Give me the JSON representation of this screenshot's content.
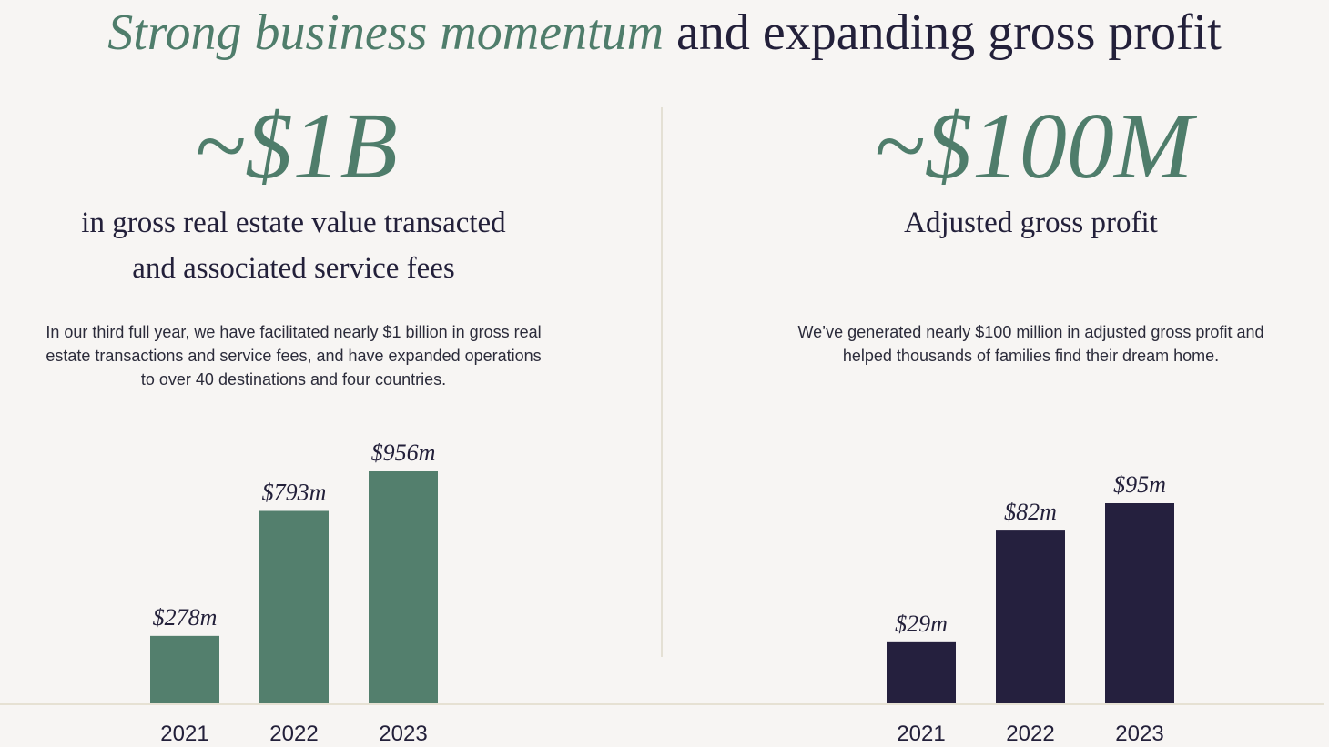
{
  "header": {
    "title_highlight": "Strong business momentum",
    "title_rest": "and expanding gross profit"
  },
  "left": {
    "big_number": "~$1B",
    "subtitle_lines": [
      "in gross real estate value transacted",
      "and associated service fees"
    ],
    "description_lines": [
      "In our third full year, we have facilitated nearly $1 billion in gross real",
      "estate transactions and service fees, and have expanded operations",
      "to over 40 destinations and four countries."
    ]
  },
  "right": {
    "big_number": "~$100M",
    "subtitle_lines": [
      "Adjusted gross profit"
    ],
    "description_lines": [
      "We’ve generated nearly $100 million in adjusted gross profit and",
      "helped thousands of families find their dream home."
    ]
  },
  "colors": {
    "green": "#537f6d",
    "navy": "#25203e",
    "background": "#f7f5f3"
  },
  "chart_data": [
    {
      "type": "bar",
      "categories": [
        "2021",
        "2022",
        "2023"
      ],
      "values": [
        278,
        793,
        956
      ],
      "data_labels": [
        "$278m",
        "$793m",
        "$956m"
      ],
      "unit": "$m",
      "color": "#537f6d",
      "grid": false
    },
    {
      "type": "bar",
      "categories": [
        "2021",
        "2022",
        "2023"
      ],
      "values": [
        29,
        82,
        95
      ],
      "data_labels": [
        "$29m",
        "$82m",
        "$95m"
      ],
      "unit": "$m",
      "color": "#25203e",
      "grid": false
    }
  ]
}
